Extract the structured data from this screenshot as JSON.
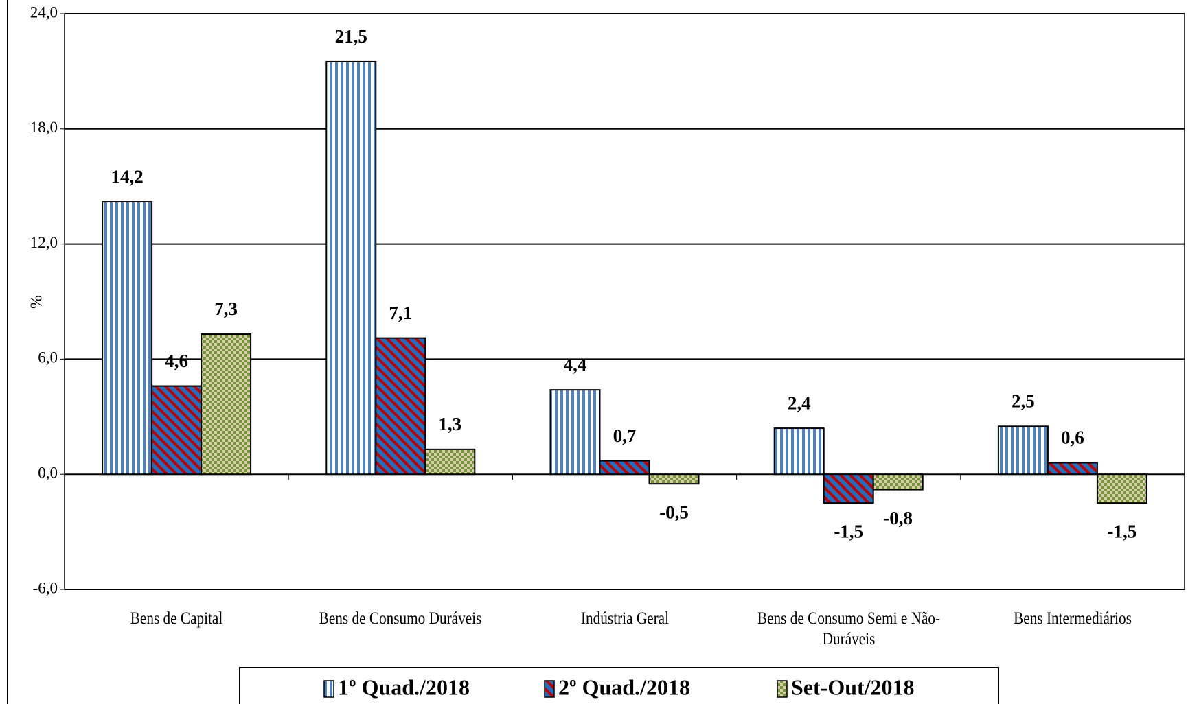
{
  "chart_data": {
    "type": "bar",
    "y_label": "%",
    "categories": [
      "Bens de Capital",
      "Bens de Consumo Duráveis",
      "Indústria Geral",
      "Bens de Consumo Semi e Não-Duráveis",
      "Bens Intermediários"
    ],
    "series": [
      {
        "name": "1º Quad./2018",
        "color": "#4f81bd",
        "pattern": "stripes",
        "values": [
          14.2,
          21.5,
          4.4,
          2.4,
          2.5
        ],
        "value_labels": [
          "14,2",
          "21,5",
          "4,4",
          "2,4",
          "2,5"
        ]
      },
      {
        "name": "2º Quad./2018",
        "color": "#c00000",
        "pattern": "diagonal",
        "values": [
          4.6,
          7.1,
          0.7,
          -1.5,
          0.6
        ],
        "value_labels": [
          "4,6",
          "7,1",
          "0,7",
          "-1,5",
          "0,6"
        ]
      },
      {
        "name": "Set-Out/2018",
        "color": "#77933c",
        "pattern": "checker",
        "values": [
          7.3,
          1.3,
          -0.5,
          -0.8,
          -1.5
        ],
        "value_labels": [
          "7,3",
          "1,3",
          "-0,5",
          "-0,8",
          "-1,5"
        ]
      }
    ],
    "ylim": [
      -6,
      24
    ],
    "yticks": [
      {
        "value": -6,
        "label": "-6,0"
      },
      {
        "value": 0,
        "label": "0,0"
      },
      {
        "value": 6,
        "label": "6,0"
      },
      {
        "value": 12,
        "label": "12,0"
      },
      {
        "value": 18,
        "label": "18,0"
      },
      {
        "value": 24,
        "label": "24,0"
      }
    ],
    "grid": true,
    "legend": "bottom"
  }
}
